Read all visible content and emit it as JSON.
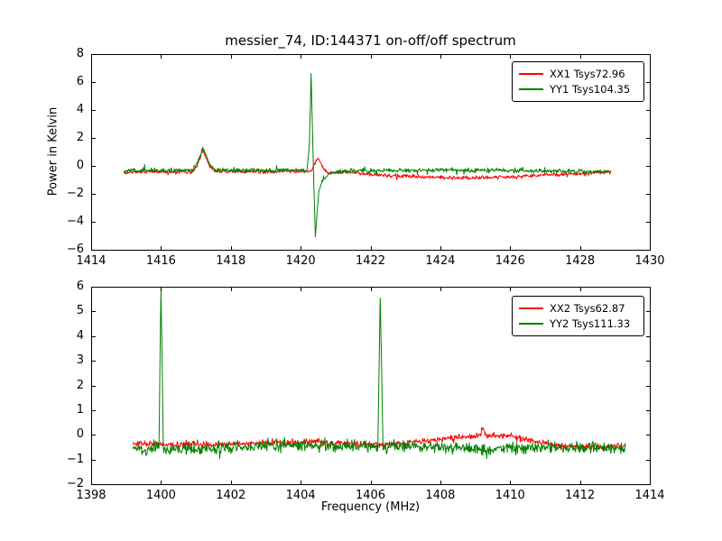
{
  "figure": {
    "background": "#ffffff",
    "text_color": "#000000"
  },
  "chart_data": [
    {
      "type": "line",
      "title": "messier_74, ID:144371 on-off/off spectrum",
      "xlabel": "",
      "ylabel": "Power in Kelvin",
      "xlim": [
        1414,
        1430
      ],
      "ylim": [
        -6,
        8
      ],
      "xticks": [
        1414,
        1416,
        1418,
        1420,
        1422,
        1424,
        1426,
        1428,
        1430
      ],
      "yticks": [
        -6,
        -4,
        -2,
        0,
        2,
        4,
        6,
        8
      ],
      "grid": false,
      "legend_position": "upper right",
      "series": [
        {
          "name": "XX1 Tsys72.96",
          "color": "#ff0000",
          "noise_amp": 0.09,
          "seed": 101,
          "keypoints": [
            [
              1414.93,
              -0.45
            ],
            [
              1415.5,
              -0.42
            ],
            [
              1416.9,
              -0.42
            ],
            [
              1417.05,
              0.1
            ],
            [
              1417.2,
              1.15
            ],
            [
              1417.38,
              0.0
            ],
            [
              1417.55,
              -0.4
            ],
            [
              1418.5,
              -0.42
            ],
            [
              1419.5,
              -0.4
            ],
            [
              1420.3,
              -0.35
            ],
            [
              1420.5,
              0.6
            ],
            [
              1420.62,
              -0.05
            ],
            [
              1420.75,
              -0.5
            ],
            [
              1421.2,
              -0.45
            ],
            [
              1421.8,
              -0.55
            ],
            [
              1422.5,
              -0.7
            ],
            [
              1423.5,
              -0.8
            ],
            [
              1425.0,
              -0.85
            ],
            [
              1426.0,
              -0.8
            ],
            [
              1427.0,
              -0.65
            ],
            [
              1428.0,
              -0.55
            ],
            [
              1428.9,
              -0.45
            ]
          ]
        },
        {
          "name": "YY1 Tsys104.35",
          "color": "#008000",
          "noise_amp": 0.11,
          "seed": 202,
          "keypoints": [
            [
              1414.93,
              -0.35
            ],
            [
              1416.0,
              -0.32
            ],
            [
              1416.9,
              -0.32
            ],
            [
              1417.05,
              0.25
            ],
            [
              1417.2,
              1.3
            ],
            [
              1417.4,
              0.15
            ],
            [
              1417.55,
              -0.3
            ],
            [
              1418.5,
              -0.32
            ],
            [
              1419.5,
              -0.3
            ],
            [
              1420.18,
              -0.3
            ],
            [
              1420.25,
              1.5
            ],
            [
              1420.3,
              6.7
            ],
            [
              1420.36,
              0.3
            ],
            [
              1420.42,
              -5.1
            ],
            [
              1420.52,
              -1.8
            ],
            [
              1420.65,
              -0.9
            ],
            [
              1420.85,
              -0.5
            ],
            [
              1421.3,
              -0.35
            ],
            [
              1423.0,
              -0.3
            ],
            [
              1425.0,
              -0.3
            ],
            [
              1427.0,
              -0.35
            ],
            [
              1428.9,
              -0.42
            ]
          ]
        }
      ]
    },
    {
      "type": "line",
      "title": "",
      "xlabel": "Frequency (MHz)",
      "ylabel": "",
      "xlim": [
        1398,
        1414
      ],
      "ylim": [
        -2,
        6
      ],
      "xticks": [
        1398,
        1400,
        1402,
        1404,
        1406,
        1408,
        1410,
        1412,
        1414
      ],
      "yticks": [
        -2,
        -1,
        0,
        1,
        2,
        3,
        4,
        5,
        6
      ],
      "grid": false,
      "legend_position": "upper right",
      "series": [
        {
          "name": "XX2 Tsys62.87",
          "color": "#ff0000",
          "noise_amp": 0.08,
          "seed": 303,
          "keypoints": [
            [
              1399.2,
              -0.35
            ],
            [
              1400.5,
              -0.4
            ],
            [
              1401.5,
              -0.4
            ],
            [
              1402.5,
              -0.35
            ],
            [
              1403.5,
              -0.3
            ],
            [
              1404.4,
              -0.27
            ],
            [
              1405.2,
              -0.33
            ],
            [
              1406.0,
              -0.4
            ],
            [
              1406.8,
              -0.35
            ],
            [
              1407.5,
              -0.25
            ],
            [
              1408.3,
              -0.12
            ],
            [
              1408.9,
              -0.08
            ],
            [
              1409.15,
              0.0
            ],
            [
              1409.22,
              0.3
            ],
            [
              1409.3,
              -0.02
            ],
            [
              1409.8,
              -0.05
            ],
            [
              1410.3,
              -0.15
            ],
            [
              1410.8,
              -0.3
            ],
            [
              1411.5,
              -0.45
            ],
            [
              1412.5,
              -0.5
            ],
            [
              1413.3,
              -0.45
            ]
          ]
        },
        {
          "name": "YY2 Tsys111.33",
          "color": "#008000",
          "noise_amp": 0.16,
          "seed": 404,
          "keypoints": [
            [
              1399.2,
              -0.55
            ],
            [
              1399.6,
              -0.62
            ],
            [
              1399.94,
              -0.55
            ],
            [
              1400.0,
              5.9
            ],
            [
              1400.07,
              -0.62
            ],
            [
              1400.6,
              -0.6
            ],
            [
              1401.5,
              -0.55
            ],
            [
              1402.5,
              -0.5
            ],
            [
              1403.5,
              -0.45
            ],
            [
              1404.4,
              -0.4
            ],
            [
              1405.2,
              -0.45
            ],
            [
              1406.0,
              -0.5
            ],
            [
              1406.21,
              -0.5
            ],
            [
              1406.28,
              5.65
            ],
            [
              1406.36,
              -0.5
            ],
            [
              1407.0,
              -0.5
            ],
            [
              1408.0,
              -0.52
            ],
            [
              1409.0,
              -0.56
            ],
            [
              1410.0,
              -0.55
            ],
            [
              1411.0,
              -0.5
            ],
            [
              1412.0,
              -0.5
            ],
            [
              1412.8,
              -0.56
            ],
            [
              1413.3,
              -0.5
            ]
          ]
        }
      ]
    }
  ]
}
